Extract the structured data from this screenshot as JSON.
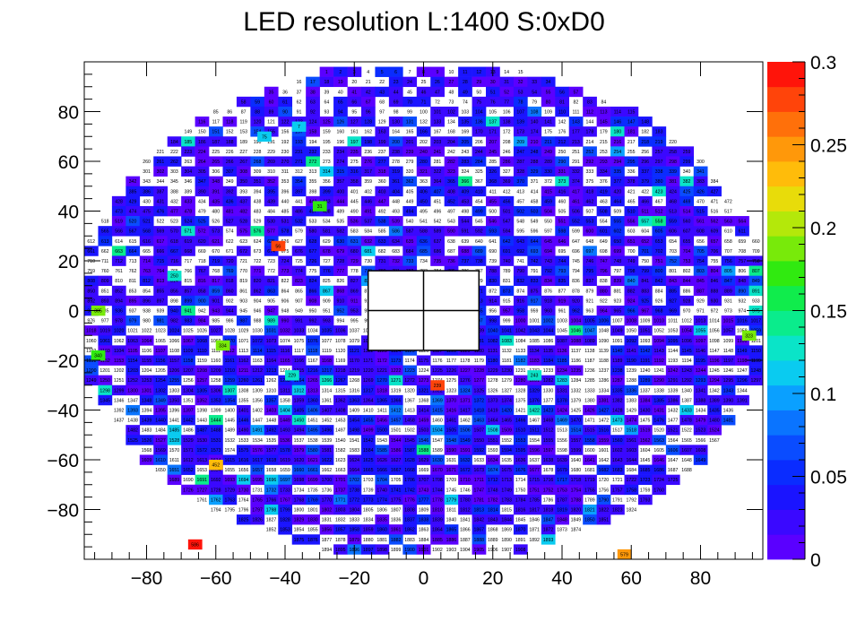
{
  "chart_data": {
    "type": "heatmap",
    "title": "LED resolution L:1400 S:0xD0",
    "xlabel": "",
    "ylabel": "",
    "xlim": [
      -98,
      98
    ],
    "ylim": [
      -100,
      100
    ],
    "x_ticks": [
      -80,
      -60,
      -40,
      -20,
      0,
      20,
      40,
      60,
      80
    ],
    "y_ticks": [
      -80,
      -60,
      -40,
      -20,
      0,
      20,
      40,
      60,
      80
    ],
    "colorbar": {
      "min": 0,
      "max": 0.3,
      "ticks": [
        "0",
        "0.05",
        "0.1",
        "0.15",
        "0.2",
        "0.25",
        "0.3"
      ],
      "tick_values": [
        0,
        0.05,
        0.1,
        0.15,
        0.2,
        0.25,
        0.3
      ]
    },
    "grid": false,
    "notable_cells": [
      {
        "label": "586",
        "value": 0.29
      },
      {
        "label": "452",
        "value": 0.23
      },
      {
        "label": "579",
        "value": 0.24
      },
      {
        "label": "239",
        "value": 0.27
      },
      {
        "label": "56",
        "value": 0.28
      },
      {
        "label": "305",
        "value": 0.18
      },
      {
        "label": "340",
        "value": 0.17
      },
      {
        "label": "334",
        "value": 0.18
      },
      {
        "label": "323",
        "value": 0.18
      },
      {
        "label": "31",
        "value": 0.17
      },
      {
        "label": "250",
        "value": 0.12
      },
      {
        "label": "7",
        "value": 0.11
      },
      {
        "label": "75",
        "value": 0.11
      },
      {
        "label": "229",
        "value": 0.12
      },
      {
        "label": "243",
        "value": 0.13
      }
    ]
  },
  "colors": {
    "palette": [
      "#5a00ff",
      "#3a08ff",
      "#1a14ff",
      "#0a2cff",
      "#0a4cff",
      "#0a74ff",
      "#0aa0ff",
      "#0acbf0",
      "#0ae4c8",
      "#0aec8c",
      "#10ec4c",
      "#30ea10",
      "#78ea0a",
      "#b4e80a",
      "#e8dc0a",
      "#ffbc0a",
      "#ff980a",
      "#ff700a",
      "#ff440a",
      "#ff140a"
    ],
    "hole": "#ffffff",
    "frame": "#000000"
  }
}
